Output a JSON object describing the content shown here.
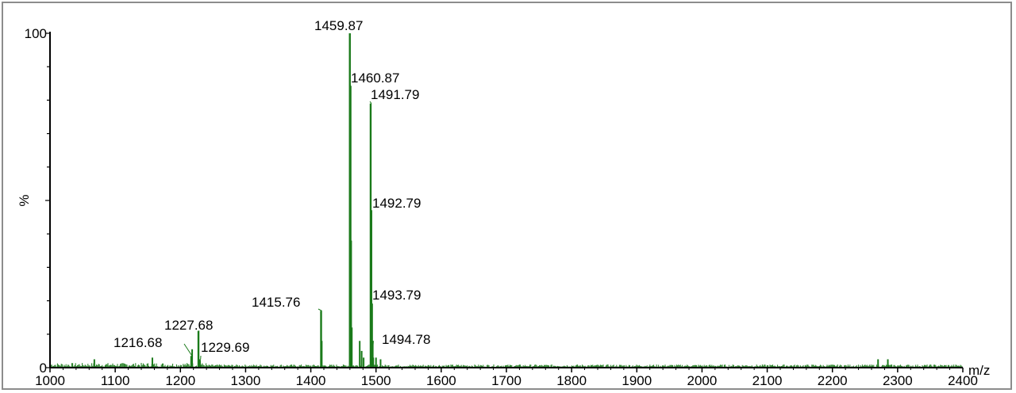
{
  "chart_data": {
    "type": "line",
    "title": "",
    "xlabel": "m/z",
    "ylabel": "%",
    "xlim": [
      1000,
      2400
    ],
    "ylim": [
      0,
      100
    ],
    "grid": false,
    "x_ticks": [
      1000,
      1100,
      1200,
      1300,
      1400,
      1500,
      1600,
      1700,
      1800,
      1900,
      2000,
      2100,
      2200,
      2300,
      2400
    ],
    "y_ticks": [
      0,
      100
    ],
    "colors": {
      "trace": "#1a7a1a",
      "axis": "#000000"
    },
    "peaks": [
      {
        "mz": 1216.68,
        "intensity": 3.5,
        "label": "1216.68"
      },
      {
        "mz": 1227.68,
        "intensity": 11,
        "label": "1227.68"
      },
      {
        "mz": 1229.69,
        "intensity": 2.5,
        "label": "1229.69"
      },
      {
        "mz": 1415.76,
        "intensity": 17,
        "label": "1415.76"
      },
      {
        "mz": 1459.87,
        "intensity": 100,
        "label": "1459.87"
      },
      {
        "mz": 1460.87,
        "intensity": 84,
        "label": "1460.87"
      },
      {
        "mz": 1491.79,
        "intensity": 79,
        "label": "1491.79"
      },
      {
        "mz": 1492.79,
        "intensity": 47,
        "label": "1492.79"
      },
      {
        "mz": 1493.79,
        "intensity": 19,
        "label": "1493.79"
      },
      {
        "mz": 1494.78,
        "intensity": 8,
        "label": "1494.78"
      }
    ],
    "minor_peaks": [
      {
        "mz": 1068,
        "intensity": 2.5
      },
      {
        "mz": 1157,
        "intensity": 3
      },
      {
        "mz": 1218,
        "intensity": 5.5
      },
      {
        "mz": 1230,
        "intensity": 2
      },
      {
        "mz": 1416.8,
        "intensity": 8
      },
      {
        "mz": 1461.9,
        "intensity": 38
      },
      {
        "mz": 1462.9,
        "intensity": 12
      },
      {
        "mz": 1475,
        "intensity": 8
      },
      {
        "mz": 1478,
        "intensity": 5
      },
      {
        "mz": 1481,
        "intensity": 3
      },
      {
        "mz": 1495.8,
        "intensity": 3
      },
      {
        "mz": 1500,
        "intensity": 3
      },
      {
        "mz": 1507,
        "intensity": 2.5
      },
      {
        "mz": 2270,
        "intensity": 2.5
      },
      {
        "mz": 2285,
        "intensity": 2.5
      }
    ]
  }
}
